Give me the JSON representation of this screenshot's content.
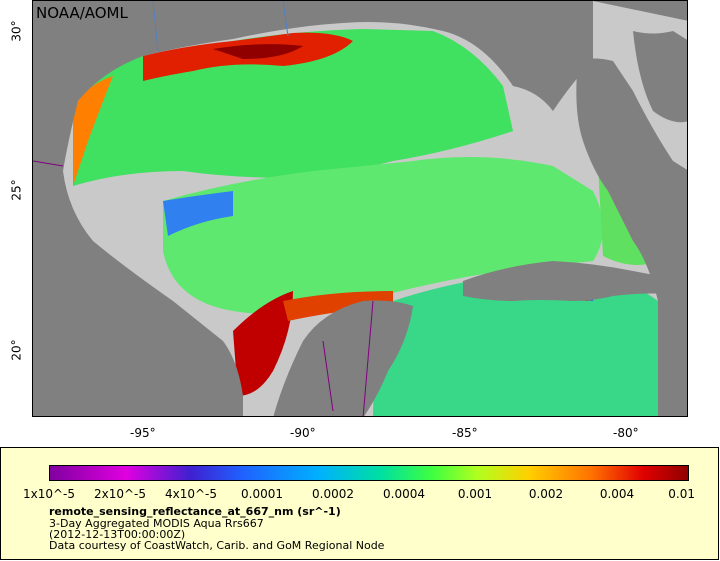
{
  "watermark": "NOAA/AOML",
  "lon_ticks": [
    "-95°",
    "-90°",
    "-85°",
    "-80°"
  ],
  "lat_ticks": [
    "30°",
    "25°",
    "20°"
  ],
  "colorbar": {
    "labels": [
      "1x10^-5",
      "2x10^-5",
      "4x10^-5",
      "0.0001",
      "0.0002",
      "0.0004",
      "0.001",
      "0.002",
      "0.004",
      "0.01"
    ]
  },
  "caption": {
    "variable": "remote_sensing_reflectance_at_667_nm (sr^-1)",
    "product": "3-Day Aggregated MODIS Aqua Rrs667",
    "time": "(2012-12-13T00:00:00Z)",
    "credit": "Data courtesy of CoastWatch, Carib. and GoM Regional Node"
  },
  "colors": {
    "land": "#808080",
    "nodata": "#c9c9c9",
    "coast_high": "#c00000",
    "open_ocean": "#40e060"
  }
}
